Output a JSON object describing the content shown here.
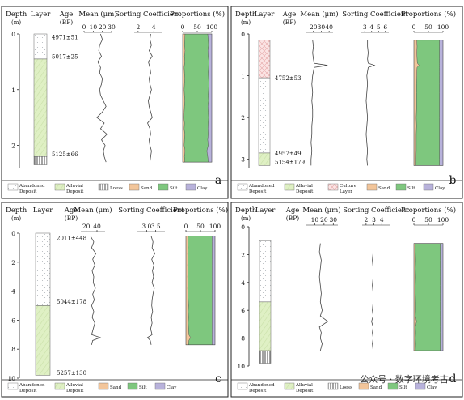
{
  "legend_labels": {
    "abandoned": "Abandoned Deposit",
    "alluvial": "Alluvial Deposit",
    "loess": "Loess",
    "culture": "Culture Layer",
    "sand": "Sand",
    "silt": "Silt",
    "clay": "Clay"
  },
  "colors": {
    "abandoned_fill": "#ffffff",
    "abandoned_dots": "#aeb4b8",
    "alluvial_fill": "#dff0c4",
    "alluvial_hatch": "#c9e0a8",
    "culture_fill": "#fbe4e4",
    "culture_hatch": "#e6a8a8",
    "sand": "#f2c59a",
    "silt": "#7ec77e",
    "clay": "#b8b2db",
    "line": "#444444"
  },
  "watermark": "公众号 · 数字环境考古",
  "chart_data": [
    {
      "panel": "a",
      "type": "line",
      "headers": {
        "depth": "Depth",
        "depth_unit": "(m)",
        "layer": "Layer",
        "age": "Age",
        "age_unit": "(BP)",
        "mean": "Mean (μm)",
        "sorting": "Sorting Coefficient",
        "proportions": "Proportions (%)"
      },
      "depth_range": [
        0,
        2.4
      ],
      "depth_ticks": [
        0,
        1,
        2
      ],
      "layers": [
        {
          "type": "abandoned",
          "from": 0,
          "to": 0.45
        },
        {
          "type": "alluvial",
          "from": 0.45,
          "to": 2.2
        },
        {
          "type": "loess",
          "from": 2.2,
          "to": 2.35
        }
      ],
      "ages": [
        {
          "depth": 0.05,
          "label": "4971±51"
        },
        {
          "depth": 0.4,
          "label": "5017±25"
        },
        {
          "depth": 2.15,
          "label": "5125±66"
        }
      ],
      "mean": {
        "range": [
          0,
          30
        ],
        "ticks": [
          0,
          10,
          20,
          30
        ],
        "tick_labels": [
          "0",
          "10",
          "20",
          "30"
        ]
      },
      "sorting": {
        "range": [
          1.5,
          5
        ],
        "ticks": [
          2,
          4
        ],
        "tick_labels": [
          "2",
          "4"
        ]
      },
      "proportions": {
        "range": [
          0,
          100
        ],
        "ticks": [
          0,
          50,
          100
        ],
        "tick_labels": [
          "0",
          "50",
          "100"
        ]
      },
      "series": {
        "depth": [
          0.0,
          0.1,
          0.2,
          0.3,
          0.4,
          0.5,
          0.6,
          0.7,
          0.8,
          0.9,
          1.0,
          1.1,
          1.2,
          1.3,
          1.4,
          1.5,
          1.6,
          1.7,
          1.8,
          1.9,
          2.0,
          2.1,
          2.2,
          2.3
        ],
        "mean": [
          18,
          20,
          17,
          16,
          19,
          15,
          18,
          17,
          20,
          19,
          17,
          18,
          21,
          24,
          20,
          14,
          22,
          18,
          25,
          19,
          23,
          21,
          22,
          24
        ],
        "sorting": [
          3.6,
          3.5,
          3.7,
          3.4,
          3.8,
          3.3,
          3.5,
          3.6,
          3.4,
          3.5,
          3.7,
          3.5,
          3.3,
          3.4,
          3.6,
          3.8,
          3.2,
          3.5,
          3.6,
          3.4,
          3.5,
          3.7,
          3.6,
          3.5
        ],
        "sand": [
          8,
          7,
          6,
          8,
          6,
          7,
          5,
          6,
          7,
          6,
          5,
          6,
          7,
          6,
          5,
          4,
          6,
          5,
          7,
          6,
          5,
          8,
          6,
          7
        ],
        "clay": [
          86,
          88,
          89,
          87,
          88,
          90,
          89,
          88,
          89,
          90,
          89,
          88,
          89,
          87,
          88,
          89,
          88,
          87,
          88,
          86,
          88,
          83,
          86,
          88
        ]
      }
    },
    {
      "panel": "b",
      "type": "line",
      "headers": {
        "depth": "Depth",
        "depth_unit": "(m)",
        "layer": "Layer",
        "age": "Age",
        "age_unit": "(BP)",
        "mean": "Mean (μm)",
        "sorting": "Sorting Coefficient",
        "proportions": "Proportions (%)"
      },
      "depth_range": [
        0,
        3.2
      ],
      "depth_ticks": [
        0,
        1,
        2,
        3
      ],
      "layers": [
        {
          "type": "culture",
          "from": 0.15,
          "to": 1.05
        },
        {
          "type": "abandoned",
          "from": 1.05,
          "to": 2.85
        },
        {
          "type": "alluvial",
          "from": 2.85,
          "to": 3.15
        }
      ],
      "ages": [
        {
          "depth": 1.05,
          "label": "4752±53"
        },
        {
          "depth": 2.85,
          "label": "4957±49"
        },
        {
          "depth": 3.05,
          "label": "5154±179"
        }
      ],
      "mean": {
        "range": [
          10,
          45
        ],
        "ticks": [
          20,
          30,
          40
        ],
        "tick_labels": [
          "20",
          "30",
          "40"
        ]
      },
      "sorting": {
        "range": [
          2.5,
          6.5
        ],
        "ticks": [
          3,
          4,
          5,
          6
        ],
        "tick_labels": [
          "3",
          "4",
          "5",
          "6"
        ]
      },
      "proportions": {
        "range": [
          0,
          100
        ],
        "ticks": [
          0,
          50,
          100
        ],
        "tick_labels": [
          "0",
          "50",
          "100"
        ]
      },
      "series": {
        "depth": [
          0.15,
          0.3,
          0.45,
          0.6,
          0.7,
          0.75,
          0.8,
          0.9,
          1.0,
          1.2,
          1.4,
          1.6,
          1.8,
          2.0,
          2.2,
          2.4,
          2.6,
          2.8,
          3.0,
          3.15
        ],
        "mean": [
          19,
          20,
          19,
          20,
          21,
          38,
          21,
          20,
          19,
          18,
          19,
          18,
          19,
          19,
          18,
          18,
          17,
          18,
          17,
          17
        ],
        "sorting": [
          3.4,
          3.4,
          3.5,
          3.4,
          3.5,
          4.4,
          3.5,
          3.4,
          3.3,
          3.4,
          3.3,
          3.2,
          3.3,
          3.4,
          3.3,
          3.2,
          3.3,
          3.4,
          3.3,
          3.4
        ],
        "sand": [
          10,
          11,
          10,
          11,
          12,
          18,
          11,
          10,
          10,
          9,
          9,
          9,
          9,
          8,
          9,
          8,
          8,
          8,
          7,
          7
        ],
        "clay": [
          88,
          88,
          88,
          88,
          88,
          88,
          88,
          88,
          88,
          88,
          88,
          88,
          88,
          88,
          88,
          88,
          88,
          88,
          88,
          88
        ]
      }
    },
    {
      "panel": "c",
      "type": "line",
      "headers": {
        "depth": "Depth",
        "depth_unit": "(m)",
        "layer": "Layer",
        "age": "Age",
        "age_unit": "(BP)",
        "mean": "Mean (μm)",
        "sorting": "Sorting Coefficient",
        "proportions": "Proportions (%)"
      },
      "depth_range": [
        0,
        10
      ],
      "depth_ticks": [
        0,
        2,
        4,
        6,
        8,
        10
      ],
      "layers": [
        {
          "type": "abandoned",
          "from": 0,
          "to": 5.0
        },
        {
          "type": "alluvial",
          "from": 5.0,
          "to": 9.8
        }
      ],
      "ages": [
        {
          "depth": 0.3,
          "label": "2011±448"
        },
        {
          "depth": 4.7,
          "label": "5044±178"
        },
        {
          "depth": 9.6,
          "label": "5257±130"
        }
      ],
      "mean": {
        "range": [
          10,
          55
        ],
        "ticks": [
          20,
          40
        ],
        "tick_labels": [
          "20",
          "40"
        ]
      },
      "sorting": {
        "range": [
          2.5,
          4.0
        ],
        "ticks": [
          3.0,
          3.5
        ],
        "tick_labels": [
          "3.0",
          "3.5"
        ]
      },
      "proportions": {
        "range": [
          0,
          100
        ],
        "ticks": [
          0,
          50,
          100
        ],
        "tick_labels": [
          "0",
          "50",
          "100"
        ]
      },
      "series": {
        "depth": [
          0.2,
          0.6,
          1.0,
          1.4,
          1.8,
          2.2,
          2.6,
          3.0,
          3.4,
          3.8,
          4.2,
          4.6,
          5.0,
          5.4,
          5.8,
          6.2,
          6.6,
          7.0,
          7.2,
          7.4,
          7.7
        ],
        "mean": [
          28,
          34,
          30,
          38,
          32,
          36,
          31,
          34,
          33,
          37,
          32,
          35,
          30,
          34,
          31,
          36,
          33,
          30,
          46,
          32,
          30
        ],
        "sorting": [
          3.25,
          3.35,
          3.3,
          3.45,
          3.28,
          3.4,
          3.32,
          3.38,
          3.3,
          3.42,
          3.35,
          3.3,
          3.28,
          3.33,
          3.25,
          3.3,
          3.22,
          3.3,
          3.05,
          3.2,
          3.25
        ],
        "sand": [
          8,
          7,
          8,
          6,
          7,
          6,
          7,
          6,
          7,
          6,
          7,
          8,
          9,
          8,
          9,
          8,
          9,
          10,
          16,
          10,
          9
        ],
        "clay": [
          90,
          90,
          90,
          90,
          90,
          90,
          90,
          90,
          90,
          90,
          90,
          90,
          90,
          90,
          90,
          90,
          90,
          90,
          90,
          90,
          90
        ]
      }
    },
    {
      "panel": "d",
      "type": "line",
      "headers": {
        "depth": "Depth",
        "depth_unit": "(m)",
        "layer": "Layer",
        "age": "Age",
        "age_unit": "(BP)",
        "mean": "Mean (μm)",
        "sorting": "Sorting Coefficient",
        "proportions": "Proportions (%)"
      },
      "depth_range": [
        0,
        10
      ],
      "depth_ticks": [
        0,
        2,
        4,
        6,
        8,
        10
      ],
      "layers": [
        {
          "type": "abandoned",
          "from": 1.0,
          "to": 5.4
        },
        {
          "type": "alluvial",
          "from": 5.4,
          "to": 8.9
        },
        {
          "type": "loess",
          "from": 8.9,
          "to": 9.8
        }
      ],
      "ages": [],
      "mean": {
        "range": [
          0,
          35
        ],
        "ticks": [
          10,
          20,
          30
        ],
        "tick_labels": [
          "10",
          "20",
          "30"
        ]
      },
      "sorting": {
        "range": [
          1.5,
          5
        ],
        "ticks": [
          2,
          3,
          4
        ],
        "tick_labels": [
          "2",
          "3",
          "4"
        ]
      },
      "proportions": {
        "range": [
          0,
          100
        ],
        "ticks": [
          0,
          50,
          100
        ],
        "tick_labels": [
          "0",
          "50",
          "100"
        ]
      },
      "series": {
        "depth": [
          1.2,
          1.8,
          2.4,
          3.0,
          3.6,
          4.2,
          4.8,
          5.4,
          6.0,
          6.4,
          6.8,
          7.2,
          7.6,
          8.0,
          8.4,
          8.9
        ],
        "mean": [
          16,
          15,
          17,
          16,
          15,
          16,
          17,
          16,
          18,
          16,
          24,
          15,
          17,
          16,
          18,
          16
        ],
        "sorting": [
          2.9,
          2.9,
          2.8,
          2.9,
          2.9,
          2.8,
          2.9,
          2.9,
          2.8,
          2.9,
          2.7,
          2.9,
          2.8,
          2.9,
          2.8,
          2.9
        ],
        "sand": [
          5,
          5,
          6,
          5,
          6,
          5,
          5,
          6,
          6,
          5,
          9,
          5,
          6,
          5,
          6,
          5
        ],
        "clay": [
          91,
          91,
          91,
          91,
          91,
          91,
          91,
          91,
          91,
          91,
          91,
          91,
          91,
          91,
          91,
          91
        ]
      }
    }
  ]
}
